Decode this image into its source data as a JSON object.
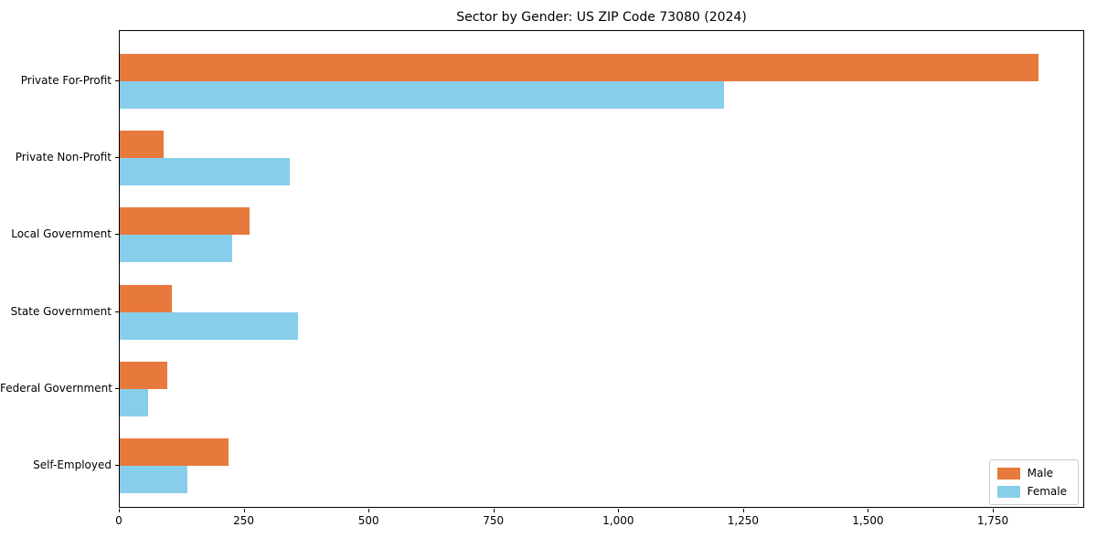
{
  "chart_data": {
    "type": "bar",
    "orientation": "horizontal",
    "title": "Sector by Gender: US ZIP Code 73080 (2024)",
    "categories": [
      "Private For-Profit",
      "Private Non-Profit",
      "Local Government",
      "State Government",
      "Federal Government",
      "Self-Employed"
    ],
    "series": [
      {
        "name": "Male",
        "color": "#E8793D",
        "values": [
          1840,
          88,
          260,
          105,
          96,
          218
        ]
      },
      {
        "name": "Female",
        "color": "#87CEEB",
        "values": [
          1210,
          341,
          226,
          357,
          57,
          135
        ]
      }
    ],
    "xlabel": "",
    "ylabel": "",
    "xlim": [
      0,
      1933
    ],
    "xticks": [
      {
        "value": 0,
        "label": "0"
      },
      {
        "value": 250,
        "label": "250"
      },
      {
        "value": 500,
        "label": "500"
      },
      {
        "value": 750,
        "label": "750"
      },
      {
        "value": 1000,
        "label": "1,000"
      },
      {
        "value": 1250,
        "label": "1,250"
      },
      {
        "value": 1500,
        "label": "1,500"
      },
      {
        "value": 1750,
        "label": "1,750"
      }
    ],
    "grid": false,
    "legend_position": "lower right"
  }
}
